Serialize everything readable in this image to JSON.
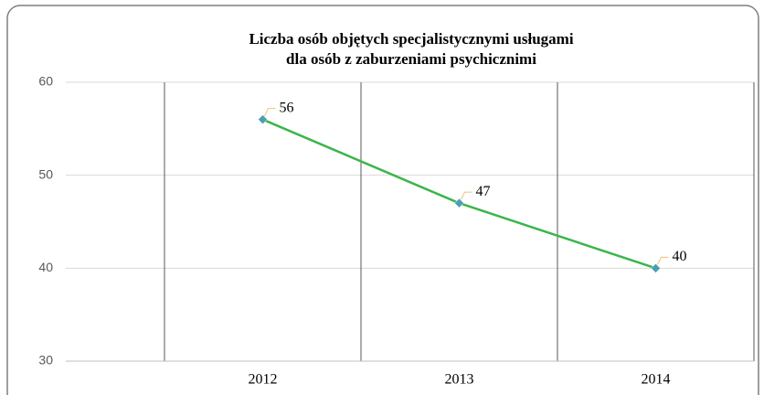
{
  "chart_data": {
    "type": "line",
    "title": [
      "Liczba osób objętych specjalistycznymi usługami",
      "dla osób z zaburzeniami psychicznimi"
    ],
    "categories": [
      "2012",
      "2013",
      "2014"
    ],
    "series": [
      {
        "name": "Liczba osób",
        "color": "#3cb54a",
        "values": [
          56,
          47,
          40
        ]
      }
    ],
    "marker_color": "#4a9fb3",
    "ylim": [
      30,
      60
    ],
    "yticks": [
      30,
      40,
      50,
      60
    ],
    "grid": true
  }
}
